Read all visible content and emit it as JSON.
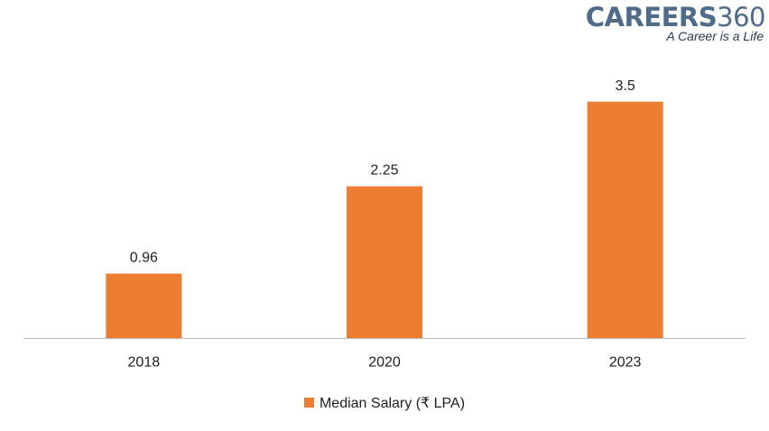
{
  "logo": {
    "word": "CAREERS",
    "number": "360",
    "tagline": "A Career is a Life"
  },
  "legend": {
    "label": "Median Salary (₹ LPA)"
  },
  "chart_data": {
    "type": "bar",
    "categories": [
      "2018",
      "2020",
      "2023"
    ],
    "series": [
      {
        "name": "Median Salary (₹ LPA)",
        "values": [
          0.96,
          2.25,
          3.5
        ],
        "data_labels": [
          "0.96",
          "2.25",
          "3.5"
        ],
        "color": "#ed7d31"
      }
    ],
    "title": "",
    "xlabel": "",
    "ylabel": "",
    "ylim": [
      0,
      3.75
    ],
    "y_axis_visible": false,
    "grid": false,
    "legend_position": "bottom"
  },
  "colors": {
    "bar": "#ed7d31",
    "axis": "#bfbfbf",
    "text": "#1f1f1f",
    "brand": "#4f6b8a"
  }
}
